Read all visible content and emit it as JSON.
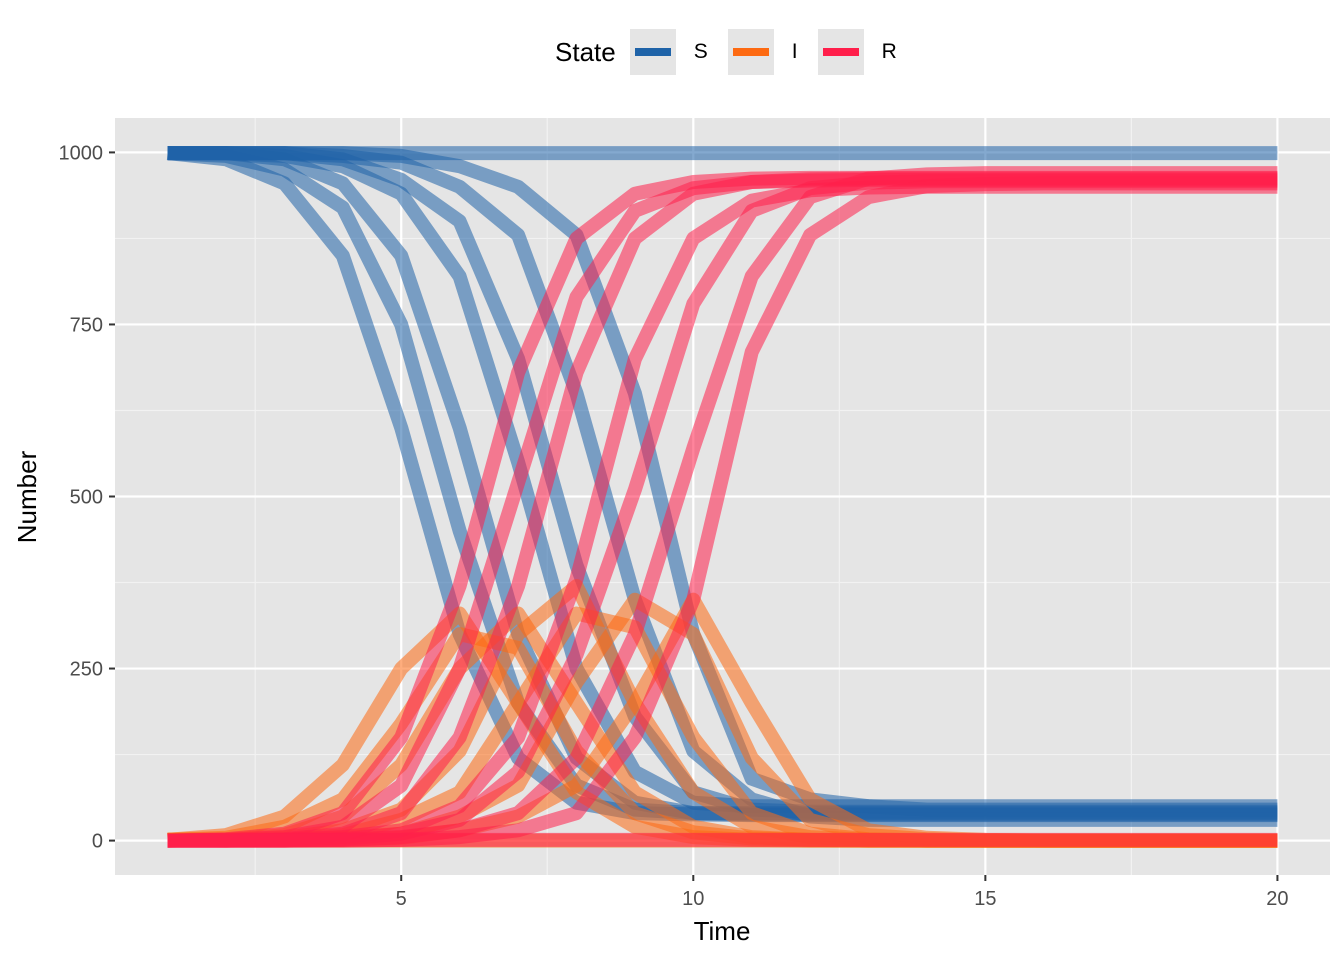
{
  "chart_data": {
    "type": "line",
    "xlabel": "Time",
    "ylabel": "Number",
    "xlim": [
      0.1,
      20.9
    ],
    "ylim": [
      -50,
      1050
    ],
    "x_ticks": [
      5,
      10,
      15,
      20
    ],
    "y_ticks": [
      0,
      250,
      500,
      750,
      1000
    ],
    "grid": true,
    "legend": {
      "title": "State",
      "placement": "top"
    },
    "x": [
      1,
      2,
      3,
      4,
      5,
      6,
      7,
      8,
      9,
      10,
      11,
      12,
      13,
      14,
      15,
      16,
      17,
      18,
      19,
      20
    ],
    "series": [
      {
        "name": "S",
        "color": "#1F63A8",
        "runs": [
          [
            999,
            990,
            955,
            850,
            600,
            300,
            120,
            55,
            40,
            38,
            37,
            37,
            37,
            37,
            37,
            37,
            37,
            37,
            37,
            37
          ],
          [
            999,
            995,
            975,
            920,
            750,
            450,
            200,
            80,
            45,
            40,
            40,
            40,
            40,
            40,
            40,
            40,
            40,
            40,
            40,
            40
          ],
          [
            999,
            999,
            990,
            955,
            850,
            600,
            300,
            120,
            55,
            40,
            38,
            38,
            38,
            38,
            38,
            38,
            38,
            38,
            38,
            38
          ],
          [
            999,
            999,
            995,
            980,
            940,
            820,
            550,
            250,
            100,
            55,
            50,
            50,
            50,
            50,
            50,
            50,
            50,
            50,
            50,
            50
          ],
          [
            999,
            999,
            999,
            990,
            960,
            900,
            700,
            400,
            180,
            70,
            45,
            42,
            42,
            42,
            42,
            42,
            42,
            42,
            42,
            42
          ],
          [
            999,
            999,
            999,
            995,
            985,
            950,
            880,
            650,
            350,
            130,
            60,
            35,
            30,
            30,
            30,
            30,
            30,
            30,
            30,
            30
          ],
          [
            999,
            999,
            999,
            999,
            995,
            980,
            950,
            880,
            650,
            300,
            90,
            60,
            50,
            45,
            45,
            45,
            45,
            45,
            45,
            45
          ],
          [
            999,
            999,
            999,
            999,
            999,
            999,
            999,
            999,
            999,
            999,
            999,
            999,
            999,
            999,
            999,
            999,
            999,
            999,
            999,
            999
          ]
        ]
      },
      {
        "name": "I",
        "color": "#FD6A12",
        "runs": [
          [
            1,
            8,
            35,
            110,
            250,
            330,
            200,
            70,
            20,
            5,
            1,
            0,
            0,
            0,
            0,
            0,
            0,
            0,
            0,
            0
          ],
          [
            1,
            4,
            20,
            60,
            170,
            300,
            280,
            130,
            40,
            12,
            3,
            1,
            0,
            0,
            0,
            0,
            0,
            0,
            0,
            0
          ],
          [
            1,
            1,
            8,
            35,
            110,
            250,
            330,
            200,
            70,
            20,
            5,
            1,
            0,
            0,
            0,
            0,
            0,
            0,
            0,
            0
          ],
          [
            1,
            1,
            4,
            15,
            45,
            130,
            300,
            370,
            200,
            70,
            20,
            5,
            1,
            0,
            0,
            0,
            0,
            0,
            0,
            0
          ],
          [
            1,
            1,
            1,
            8,
            30,
            70,
            200,
            330,
            310,
            150,
            40,
            10,
            2,
            0,
            0,
            0,
            0,
            0,
            0,
            0
          ],
          [
            1,
            1,
            1,
            4,
            10,
            35,
            80,
            230,
            350,
            300,
            120,
            30,
            8,
            2,
            0,
            0,
            0,
            0,
            0,
            0
          ],
          [
            1,
            1,
            1,
            1,
            4,
            15,
            35,
            80,
            200,
            350,
            200,
            60,
            15,
            4,
            1,
            0,
            0,
            0,
            0,
            0
          ],
          [
            1,
            0,
            0,
            0,
            0,
            0,
            0,
            0,
            0,
            0,
            0,
            0,
            0,
            0,
            0,
            0,
            0,
            0,
            0,
            0
          ]
        ]
      },
      {
        "name": "R",
        "color": "#FF1F4B",
        "runs": [
          [
            0,
            2,
            10,
            40,
            150,
            370,
            680,
            875,
            940,
            957,
            962,
            963,
            963,
            963,
            963,
            963,
            963,
            963,
            963,
            963
          ],
          [
            0,
            1,
            5,
            20,
            80,
            250,
            520,
            790,
            915,
            948,
            957,
            959,
            960,
            960,
            960,
            960,
            960,
            960,
            960,
            960
          ],
          [
            0,
            0,
            2,
            10,
            40,
            150,
            370,
            680,
            875,
            940,
            957,
            961,
            962,
            962,
            962,
            962,
            962,
            962,
            962,
            962
          ],
          [
            0,
            0,
            1,
            5,
            15,
            50,
            150,
            380,
            700,
            875,
            930,
            945,
            949,
            950,
            950,
            950,
            950,
            950,
            950,
            950
          ],
          [
            0,
            0,
            0,
            2,
            10,
            30,
            100,
            270,
            510,
            780,
            915,
            948,
            956,
            958,
            958,
            958,
            958,
            958,
            958,
            958
          ],
          [
            0,
            0,
            0,
            1,
            5,
            15,
            40,
            120,
            300,
            570,
            820,
            935,
            962,
            968,
            970,
            970,
            970,
            970,
            970,
            970
          ],
          [
            0,
            0,
            0,
            0,
            1,
            5,
            15,
            40,
            150,
            350,
            710,
            880,
            935,
            951,
            954,
            955,
            955,
            955,
            955,
            955
          ],
          [
            0,
            1,
            1,
            1,
            1,
            1,
            1,
            1,
            1,
            1,
            1,
            1,
            1,
            1,
            1,
            1,
            1,
            1,
            1,
            1
          ]
        ]
      }
    ]
  }
}
